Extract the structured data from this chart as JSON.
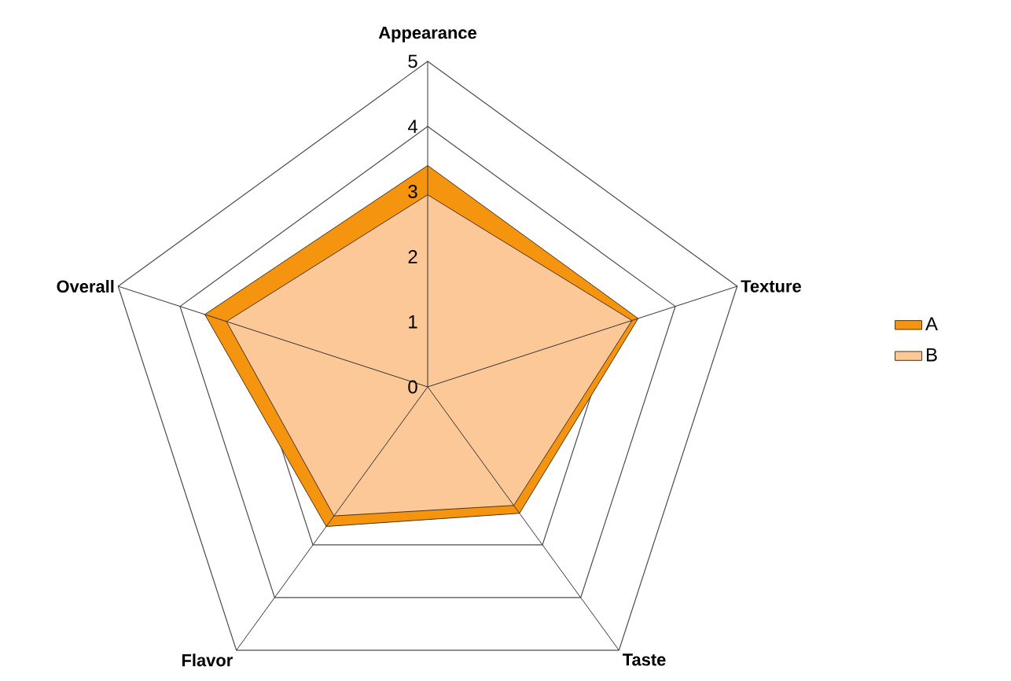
{
  "chart_data": {
    "type": "radar",
    "categories": [
      "Appearance",
      "Texture",
      "Taste",
      "Flavor",
      "Overall"
    ],
    "series": [
      {
        "name": "A",
        "color": "#f5940f",
        "values": [
          3.4,
          3.4,
          2.4,
          2.65,
          3.6
        ]
      },
      {
        "name": "B",
        "color": "#fdc897",
        "values": [
          2.95,
          3.3,
          2.25,
          2.45,
          3.25
        ]
      }
    ],
    "ylim": [
      0,
      5
    ],
    "yticks": [
      0,
      1,
      2,
      3,
      4,
      5
    ],
    "grid": true,
    "legend": "right"
  }
}
